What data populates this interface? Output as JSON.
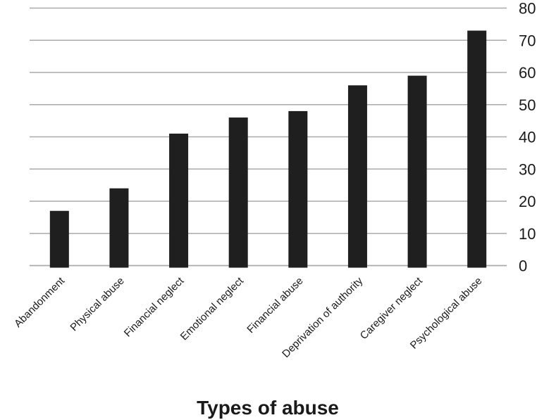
{
  "chart_data": {
    "type": "bar",
    "title": "",
    "xlabel": "Types of abuse",
    "ylabel": "",
    "categories": [
      "Abandonment",
      "Physical abuse",
      "Financial neglect",
      "Emotional neglect",
      "Financial abuse",
      "Deprivation of authority",
      "Caregiver neglect",
      "Psychological abuse"
    ],
    "values": [
      17,
      24,
      41,
      46,
      48,
      56,
      59,
      73
    ],
    "ylim": [
      0,
      80
    ],
    "yticks": [
      0,
      10,
      20,
      30,
      40,
      50,
      60,
      70,
      80
    ],
    "y_axis_side": "right",
    "grid": "horizontal",
    "legend_position": "none",
    "colors": {
      "bar": "#1f1f1f",
      "gridline": "#aaaaaa",
      "axis_line": "#aaaaaa",
      "text": "#1a1a1a"
    }
  }
}
